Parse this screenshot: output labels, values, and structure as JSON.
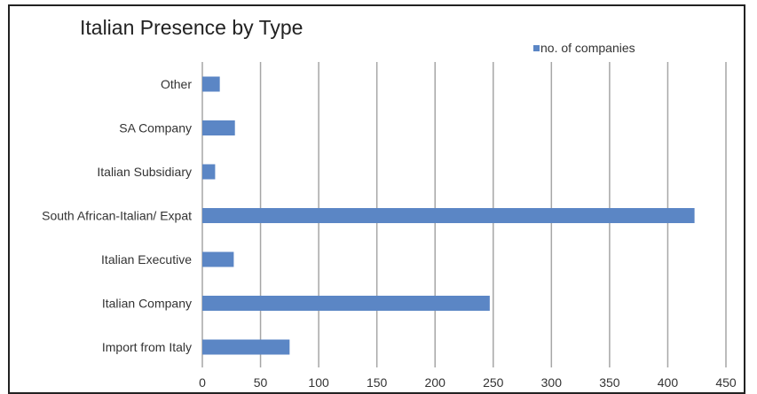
{
  "chart_data": {
    "type": "bar",
    "orientation": "horizontal",
    "title": "Italian Presence by Type",
    "categories": [
      "Other",
      "SA Company",
      "Italian Subsidiary",
      "South African-Italian/ Expat",
      "Italian Executive",
      "Italian Company",
      "Import from Italy"
    ],
    "series": [
      {
        "name": "no. of companies",
        "values": [
          15,
          28,
          11,
          423,
          27,
          247,
          75
        ],
        "color": "#5b86c5"
      }
    ],
    "xlim": [
      0,
      450
    ],
    "xticks": [
      0,
      50,
      100,
      150,
      200,
      250,
      300,
      350,
      400,
      450
    ],
    "grid": "vertical",
    "legend": "top-right",
    "xlabel": "",
    "ylabel": ""
  }
}
